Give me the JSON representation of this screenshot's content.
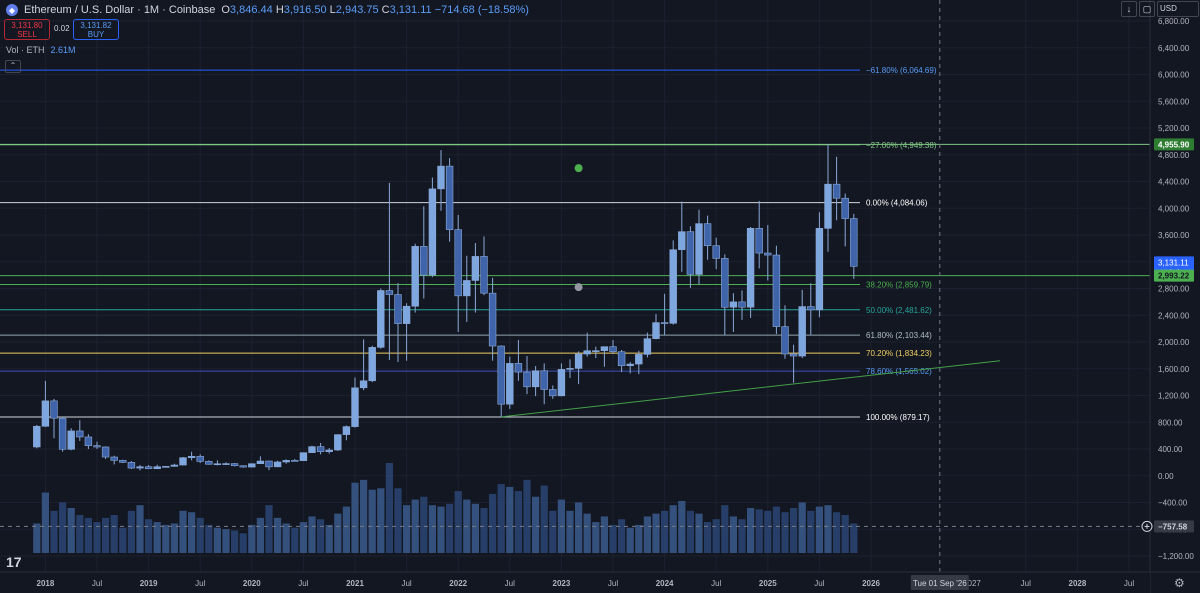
{
  "header": {
    "symbol_title": "Ethereum / U.S. Dollar · 1M · Coinbase",
    "open_label": "O",
    "open": "3,846.44",
    "high_label": "H",
    "high": "3,916.50",
    "low_label": "L",
    "low": "2,943.75",
    "close_label": "C",
    "close": "3,131.11",
    "change": "−714.68 (−18.58%)"
  },
  "trade": {
    "sell_price": "3,131.80",
    "sell_label": "SELL",
    "spread": "0.02",
    "buy_price": "3,131.82",
    "buy_label": "BUY"
  },
  "volume": {
    "label": "Vol · ETH",
    "value": "2.61M"
  },
  "toolbar": {
    "down_arrow": "↓",
    "currency": "USD"
  },
  "colors": {
    "bg": "#131722",
    "up": "#6a9bd8",
    "down": "#3a5ba0",
    "green": "#4caf50",
    "fib_white": "#d1d4dc"
  },
  "price_axis": {
    "ticks": [
      "6,800.00",
      "6,400.00",
      "6,000.00",
      "5,600.00",
      "5,200.00",
      "4,800.00",
      "4,400.00",
      "4,000.00",
      "3,600.00",
      "3,200.00",
      "2,800.00",
      "2,400.00",
      "2,000.00",
      "1,600.00",
      "1,200.00",
      "800.00",
      "400.00",
      "0.00",
      "−400.00",
      "−800.00",
      "−1,200.00"
    ],
    "tick_values": [
      6800,
      6400,
      6000,
      5600,
      5200,
      4800,
      4400,
      4000,
      3600,
      3200,
      2800,
      2400,
      2000,
      1600,
      1200,
      800,
      400,
      0,
      -400,
      -800,
      -1200
    ],
    "last_price": "3,131.11",
    "countdown": "12d 4h",
    "green_level": "4,955.90",
    "green_level_value": 4955.9,
    "support_level": "2,993.22",
    "support_level_value": 2993.22,
    "crosshair": "−757.58",
    "crosshair_value": -757.58
  },
  "time_axis": {
    "labels": [
      "2018",
      "Jul",
      "2019",
      "Jul",
      "2020",
      "Jul",
      "2021",
      "Jul",
      "2022",
      "Jul",
      "2023",
      "Jul",
      "2024",
      "Jul",
      "2025",
      "Jul",
      "2026",
      "Jul",
      "2028",
      "Jul"
    ],
    "dates": [
      "2018-01",
      "2018-07",
      "2019-01",
      "2019-07",
      "2020-01",
      "2020-07",
      "2021-01",
      "2021-07",
      "2022-01",
      "2022-07",
      "2023-01",
      "2023-07",
      "2024-01",
      "2024-07",
      "2025-01",
      "2025-07",
      "2026-01",
      "2027-07",
      "2028-01",
      "2028-07"
    ],
    "crosshair_date": "Tue 01 Sep '26",
    "crosshair_date_value": "2026-09",
    "partial_label": "027"
  },
  "fib_levels": [
    {
      "label": "−61.80% (6,064.69)",
      "value": 6064.69,
      "color": "#2962ff",
      "text_color": "#5b9cf6"
    },
    {
      "label": "−27.00% (4,949.38)",
      "value": 4949.38,
      "color": "#81c784",
      "text_color": "#81c784"
    },
    {
      "label": "0.00% (4,084.06)",
      "value": 4084.06,
      "color": "#d1d4dc",
      "text_color": "#ffffff"
    },
    {
      "label": "38.20% (2,859.79)",
      "value": 2859.79,
      "color": "#4caf50",
      "text_color": "#4caf50"
    },
    {
      "label": "50.00% (2,481.62)",
      "value": 2481.62,
      "color": "#26a69a",
      "text_color": "#26a69a"
    },
    {
      "label": "61.80% (2,103.44)",
      "value": 2103.44,
      "color": "#90a4ae",
      "text_color": "#b0bec5"
    },
    {
      "label": "70.20% (1,834.23)",
      "value": 1834.23,
      "color": "#f0d060",
      "text_color": "#f0d060"
    },
    {
      "label": "78.60% (1,565.02)",
      "value": 1565.02,
      "color": "#3f51b5",
      "text_color": "#5b9cf6"
    },
    {
      "label": "100.00% (879.17)",
      "value": 879.17,
      "color": "#d1d4dc",
      "text_color": "#ffffff"
    }
  ],
  "trendline": {
    "from": {
      "date": "2022-06",
      "price": 880
    },
    "to": {
      "date": "2027-04",
      "price": 1720
    },
    "color": "#43a047"
  },
  "chart_data": {
    "type": "candlestick",
    "x_format": "YYYY-MM",
    "candles": [
      [
        "2017-12",
        430,
        760,
        410,
        740,
        21
      ],
      [
        "2018-01",
        740,
        1420,
        730,
        1120,
        43
      ],
      [
        "2018-02",
        1120,
        1150,
        560,
        860,
        30
      ],
      [
        "2018-03",
        860,
        880,
        360,
        395,
        36
      ],
      [
        "2018-04",
        395,
        710,
        380,
        670,
        32
      ],
      [
        "2018-05",
        670,
        830,
        520,
        580,
        27
      ],
      [
        "2018-06",
        580,
        620,
        400,
        450,
        25
      ],
      [
        "2018-07",
        450,
        510,
        400,
        430,
        22
      ],
      [
        "2018-08",
        430,
        440,
        250,
        280,
        25
      ],
      [
        "2018-09",
        280,
        300,
        170,
        230,
        27
      ],
      [
        "2018-10",
        230,
        240,
        190,
        200,
        18
      ],
      [
        "2018-11",
        200,
        220,
        100,
        115,
        30
      ],
      [
        "2018-12",
        115,
        160,
        80,
        135,
        34
      ],
      [
        "2019-01",
        135,
        160,
        100,
        105,
        24
      ],
      [
        "2019-02",
        105,
        165,
        100,
        135,
        22
      ],
      [
        "2019-03",
        135,
        145,
        130,
        140,
        20
      ],
      [
        "2019-04",
        140,
        180,
        135,
        160,
        21
      ],
      [
        "2019-05",
        160,
        280,
        155,
        270,
        30
      ],
      [
        "2019-06",
        270,
        360,
        230,
        290,
        29
      ],
      [
        "2019-07",
        290,
        320,
        190,
        215,
        25
      ],
      [
        "2019-08",
        215,
        230,
        165,
        172,
        20
      ],
      [
        "2019-09",
        172,
        230,
        155,
        180,
        18
      ],
      [
        "2019-10",
        180,
        200,
        160,
        182,
        17
      ],
      [
        "2019-11",
        182,
        190,
        140,
        150,
        16
      ],
      [
        "2019-12",
        150,
        155,
        120,
        130,
        14
      ],
      [
        "2020-01",
        130,
        185,
        125,
        180,
        20
      ],
      [
        "2020-02",
        180,
        290,
        175,
        220,
        25
      ],
      [
        "2020-03",
        220,
        225,
        85,
        133,
        34
      ],
      [
        "2020-04",
        133,
        225,
        130,
        206,
        25
      ],
      [
        "2020-05",
        206,
        245,
        180,
        230,
        21
      ],
      [
        "2020-06",
        230,
        250,
        215,
        225,
        18
      ],
      [
        "2020-07",
        225,
        350,
        220,
        345,
        22
      ],
      [
        "2020-08",
        345,
        450,
        340,
        435,
        26
      ],
      [
        "2020-09",
        435,
        490,
        320,
        360,
        24
      ],
      [
        "2020-10",
        360,
        415,
        330,
        385,
        20
      ],
      [
        "2020-11",
        385,
        620,
        370,
        615,
        28
      ],
      [
        "2020-12",
        615,
        750,
        530,
        735,
        33
      ],
      [
        "2021-01",
        735,
        1470,
        720,
        1315,
        50
      ],
      [
        "2021-02",
        1315,
        2040,
        1280,
        1420,
        52
      ],
      [
        "2021-03",
        1420,
        1945,
        1400,
        1920,
        45
      ],
      [
        "2021-04",
        1920,
        2800,
        1900,
        2770,
        46
      ],
      [
        "2021-05",
        2770,
        4380,
        1730,
        2710,
        64
      ],
      [
        "2021-06",
        2710,
        2880,
        1700,
        2275,
        46
      ],
      [
        "2021-07",
        2275,
        2580,
        1720,
        2535,
        34
      ],
      [
        "2021-08",
        2535,
        3470,
        2440,
        3430,
        38
      ],
      [
        "2021-09",
        3430,
        4030,
        2650,
        3000,
        40
      ],
      [
        "2021-10",
        3000,
        4460,
        2970,
        4290,
        34
      ],
      [
        "2021-11",
        4290,
        4870,
        3960,
        4630,
        33
      ],
      [
        "2021-12",
        4630,
        4750,
        3500,
        3680,
        35
      ],
      [
        "2022-01",
        3680,
        3900,
        2150,
        2690,
        44
      ],
      [
        "2022-02",
        2690,
        3290,
        2300,
        2920,
        38
      ],
      [
        "2022-03",
        2920,
        3480,
        2440,
        3280,
        35
      ],
      [
        "2022-04",
        3280,
        3580,
        2700,
        2730,
        32
      ],
      [
        "2022-05",
        2730,
        2960,
        1720,
        1940,
        42
      ],
      [
        "2022-06",
        1940,
        1950,
        880,
        1070,
        49
      ],
      [
        "2022-07",
        1070,
        1780,
        1000,
        1680,
        47
      ],
      [
        "2022-08",
        1680,
        2030,
        1420,
        1550,
        44
      ],
      [
        "2022-09",
        1550,
        1790,
        1220,
        1330,
        52
      ],
      [
        "2022-10",
        1330,
        1640,
        1190,
        1570,
        40
      ],
      [
        "2022-11",
        1570,
        1680,
        1070,
        1290,
        48
      ],
      [
        "2022-12",
        1290,
        1350,
        1150,
        1195,
        30
      ],
      [
        "2023-01",
        1195,
        1680,
        1190,
        1590,
        38
      ],
      [
        "2023-02",
        1590,
        1740,
        1460,
        1605,
        30
      ],
      [
        "2023-03",
        1605,
        1860,
        1370,
        1820,
        36
      ],
      [
        "2023-04",
        1820,
        2140,
        1780,
        1870,
        28
      ],
      [
        "2023-05",
        1870,
        1930,
        1760,
        1870,
        22
      ],
      [
        "2023-06",
        1870,
        1930,
        1630,
        1930,
        26
      ],
      [
        "2023-07",
        1930,
        2030,
        1820,
        1855,
        20
      ],
      [
        "2023-08",
        1855,
        1880,
        1550,
        1645,
        24
      ],
      [
        "2023-09",
        1645,
        1700,
        1530,
        1670,
        18
      ],
      [
        "2023-10",
        1670,
        1870,
        1520,
        1815,
        20
      ],
      [
        "2023-11",
        1815,
        2140,
        1770,
        2050,
        26
      ],
      [
        "2023-12",
        2050,
        2420,
        2040,
        2290,
        28
      ],
      [
        "2024-01",
        2290,
        2720,
        2100,
        2280,
        30
      ],
      [
        "2024-02",
        2280,
        3520,
        2260,
        3380,
        34
      ],
      [
        "2024-03",
        3380,
        4100,
        3050,
        3650,
        37
      ],
      [
        "2024-04",
        3650,
        3730,
        2810,
        3010,
        30
      ],
      [
        "2024-05",
        3010,
        3980,
        2860,
        3770,
        28
      ],
      [
        "2024-06",
        3770,
        3890,
        3230,
        3440,
        22
      ],
      [
        "2024-07",
        3440,
        3560,
        3090,
        3250,
        24
      ],
      [
        "2024-08",
        3250,
        3310,
        2100,
        2520,
        34
      ],
      [
        "2024-09",
        2520,
        2730,
        2150,
        2600,
        26
      ],
      [
        "2024-10",
        2600,
        2770,
        2330,
        2520,
        24
      ],
      [
        "2024-11",
        2520,
        3720,
        2360,
        3700,
        32
      ],
      [
        "2024-12",
        3700,
        4110,
        3100,
        3330,
        31
      ],
      [
        "2025-01",
        3330,
        3750,
        2920,
        3300,
        30
      ],
      [
        "2025-02",
        3300,
        3440,
        2120,
        2230,
        33
      ],
      [
        "2025-03",
        2230,
        2550,
        1750,
        1820,
        29
      ],
      [
        "2025-04",
        1820,
        1960,
        1390,
        1790,
        32
      ],
      [
        "2025-05",
        1790,
        2780,
        1760,
        2530,
        36
      ],
      [
        "2025-06",
        2530,
        2880,
        2110,
        2480,
        30
      ],
      [
        "2025-07",
        2480,
        3940,
        2370,
        3700,
        33
      ],
      [
        "2025-08",
        3700,
        4960,
        3350,
        4360,
        34
      ],
      [
        "2025-09",
        4360,
        4770,
        3820,
        4150,
        29
      ],
      [
        "2025-10",
        4150,
        4220,
        3430,
        3846,
        27
      ],
      [
        "2025-11",
        3846,
        3916,
        2944,
        3131,
        21
      ]
    ],
    "volume_scale_max": 64,
    "ylim": [
      -1300,
      7000
    ],
    "xlim": [
      "2017-09",
      "2028-12"
    ]
  }
}
